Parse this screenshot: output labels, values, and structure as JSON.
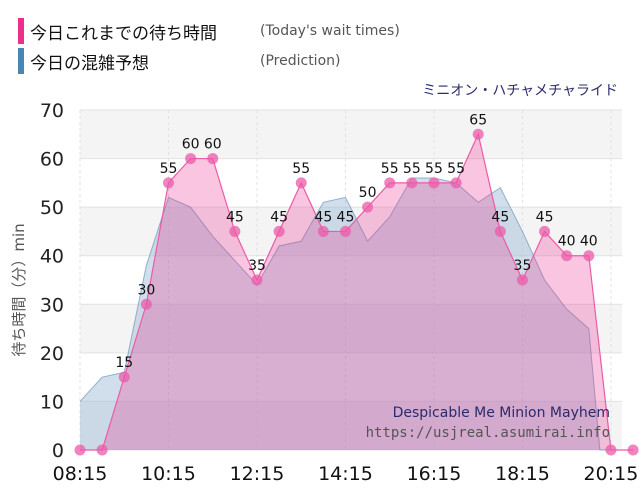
{
  "legend": {
    "today": {
      "label": "今日これまでの待ち時間",
      "note": "(Today's wait times)",
      "color": "#ec2f8f"
    },
    "prediction": {
      "label": "今日の混雑予想",
      "note": "(Prediction)",
      "color": "#4a86b4"
    }
  },
  "chart_data": {
    "type": "area",
    "title": "ミニオン・ハチャメチャライド",
    "ylabel": "待ち時間（分）min",
    "ylim": [
      0,
      70
    ],
    "yticks": [
      0,
      10,
      20,
      30,
      40,
      50,
      60,
      70
    ],
    "xlim": [
      "08:15",
      "20:30"
    ],
    "xticks": [
      "08:15",
      "10:15",
      "12:15",
      "14:15",
      "16:15",
      "18:15",
      "20:15"
    ],
    "grid": true,
    "annotations": [
      "Despicable Me Minion Mayhem",
      "https://usjreal.asumirai.info"
    ],
    "series": [
      {
        "name": "今日これまでの待ち時間",
        "color": "#ec2f8f",
        "times": [
          "08:15",
          "08:45",
          "09:15",
          "09:45",
          "10:15",
          "10:45",
          "11:15",
          "11:45",
          "12:15",
          "12:45",
          "13:15",
          "13:45",
          "14:15",
          "14:45",
          "15:15",
          "15:45",
          "16:15",
          "16:45",
          "17:15",
          "17:45",
          "18:15",
          "18:45",
          "19:15",
          "19:45",
          "20:15",
          "20:45"
        ],
        "values": [
          0,
          0,
          15,
          30,
          55,
          60,
          60,
          45,
          35,
          45,
          55,
          45,
          45,
          50,
          55,
          55,
          55,
          55,
          65,
          45,
          35,
          45,
          40,
          40,
          0,
          0
        ]
      },
      {
        "name": "今日の混雑予想",
        "color": "#4a86b4",
        "times": [
          "08:15",
          "08:45",
          "09:15",
          "09:45",
          "10:00",
          "10:15",
          "10:45",
          "11:15",
          "11:45",
          "12:15",
          "12:45",
          "13:15",
          "13:45",
          "14:15",
          "14:45",
          "15:15",
          "15:45",
          "16:15",
          "16:45",
          "17:15",
          "17:45",
          "18:15",
          "18:45",
          "19:15",
          "19:45",
          "20:00",
          "20:15",
          "20:45"
        ],
        "values": [
          10,
          15,
          16,
          38,
          45,
          52,
          50,
          44,
          39,
          34,
          42,
          43,
          51,
          52,
          43,
          48,
          56,
          56,
          55,
          51,
          54,
          45,
          35,
          29,
          25,
          0,
          0,
          0
        ]
      }
    ]
  }
}
